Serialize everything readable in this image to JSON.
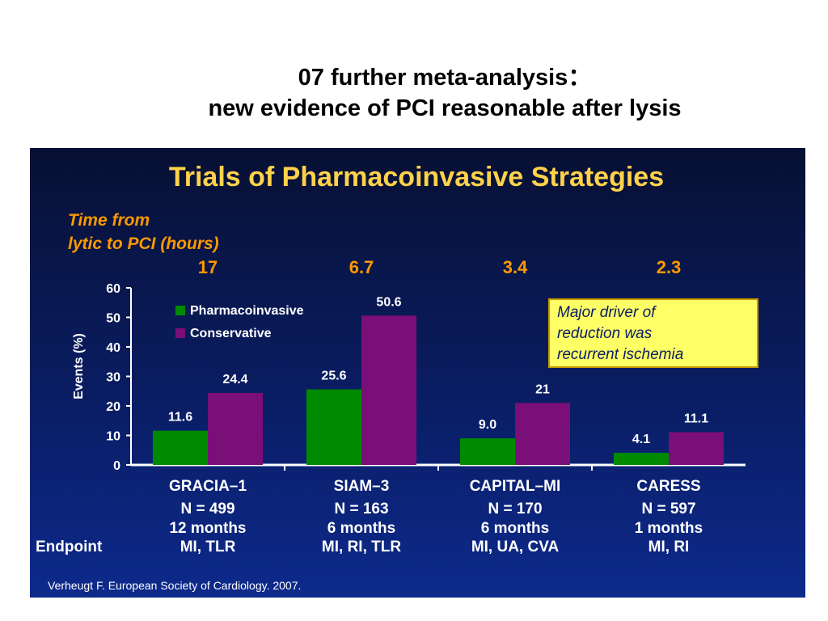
{
  "slide": {
    "title_line1": "07 further meta-analysis：",
    "title_line2": "new evidence of PCI reasonable after lysis"
  },
  "colors": {
    "pharmacoinvasive": "#008a00",
    "conservative": "#7a0f7a",
    "heading": "#ffd24a",
    "time_label": "#ff9900",
    "callout_bg": "#ffff66",
    "axis_text": "#ffffff"
  },
  "chart_data": {
    "type": "bar",
    "title": "Trials of Pharmacoinvasive Strategies",
    "time_label": [
      "Time from",
      "lytic to PCI (hours)"
    ],
    "time_values": [
      "17",
      "6.7",
      "3.4",
      "2.3"
    ],
    "ylabel": "Events (%)",
    "ylim": [
      0,
      60
    ],
    "yticks": [
      "0",
      "10",
      "20",
      "30",
      "40",
      "50",
      "60"
    ],
    "categories": [
      "GRACIA–1",
      "SIAM–3",
      "CAPITAL–MI",
      "CARESS"
    ],
    "series": [
      {
        "name": "Pharmacoinvasive",
        "values": [
          11.6,
          25.6,
          9.0,
          4.1
        ],
        "labels": [
          "11.6",
          "25.6",
          "9.0",
          "4.1"
        ]
      },
      {
        "name": "Conservative",
        "values": [
          24.4,
          50.6,
          21,
          11.1
        ],
        "labels": [
          "24.4",
          "50.6",
          "21",
          "11.1"
        ]
      }
    ],
    "legend_position": "top-left",
    "trial_details": [
      {
        "n": "N = 499",
        "duration": "12 months",
        "endpoint": "MI, TLR"
      },
      {
        "n": "N = 163",
        "duration": "6 months",
        "endpoint": "MI, RI, TLR"
      },
      {
        "n": "N = 170",
        "duration": "6 months",
        "endpoint": "MI, UA, CVA"
      },
      {
        "n": "N = 597",
        "duration": "1 months",
        "endpoint": "MI, RI"
      }
    ],
    "endpoint_label": "Endpoint",
    "annotation": [
      "Major driver of",
      "reduction was",
      "recurrent ischemia"
    ],
    "source": "Verheugt F. European Society of Cardiology. 2007."
  }
}
